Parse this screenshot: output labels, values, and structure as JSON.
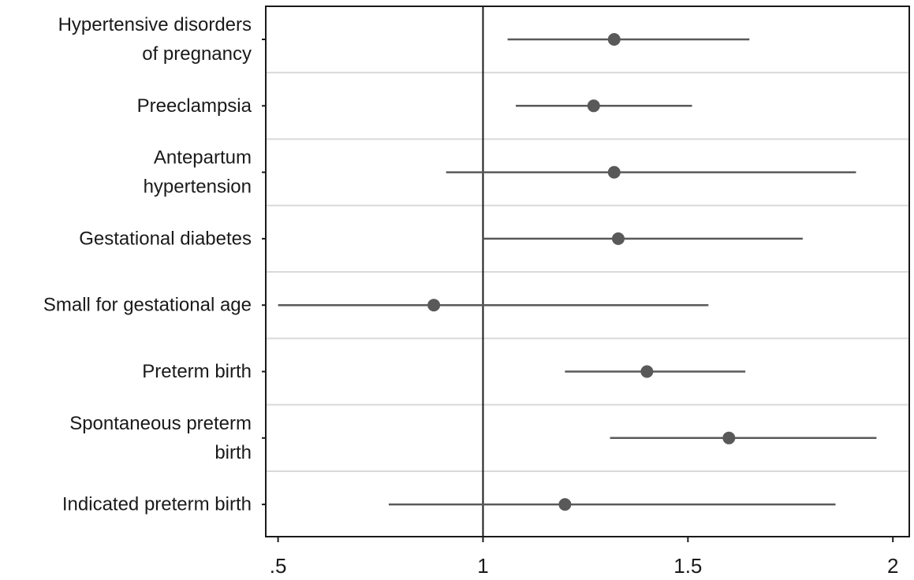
{
  "chart_data": {
    "type": "scatter",
    "title": "",
    "xlabel": "",
    "ylabel": "",
    "xlim": [
      0.47,
      2.04
    ],
    "reference_line": 1,
    "xticks": [
      0.5,
      1,
      1.5,
      2
    ],
    "xtick_labels": [
      ".5",
      "1",
      "1.5",
      "2"
    ],
    "grid": "horizontal separators between rows",
    "colors": {
      "marker": "#595959",
      "ci_line": "#595959",
      "separator": "#d9d9d9",
      "axis": "#1a1a1a"
    },
    "rows": [
      {
        "label_lines": [
          "Hypertensive disorders",
          "of pregnancy"
        ],
        "estimate": 1.32,
        "lower": 1.06,
        "upper": 1.65
      },
      {
        "label_lines": [
          "Preeclampsia"
        ],
        "estimate": 1.27,
        "lower": 1.08,
        "upper": 1.51
      },
      {
        "label_lines": [
          "Antepartum",
          "hypertension"
        ],
        "estimate": 1.32,
        "lower": 0.91,
        "upper": 1.91
      },
      {
        "label_lines": [
          "Gestational diabetes"
        ],
        "estimate": 1.33,
        "lower": 1.0,
        "upper": 1.78
      },
      {
        "label_lines": [
          "Small for gestational age"
        ],
        "estimate": 0.88,
        "lower": 0.5,
        "upper": 1.55
      },
      {
        "label_lines": [
          "Preterm birth"
        ],
        "estimate": 1.4,
        "lower": 1.2,
        "upper": 1.64
      },
      {
        "label_lines": [
          "Spontaneous preterm",
          "birth"
        ],
        "estimate": 1.6,
        "lower": 1.31,
        "upper": 1.96
      },
      {
        "label_lines": [
          "Indicated preterm birth"
        ],
        "estimate": 1.2,
        "lower": 0.77,
        "upper": 1.86
      }
    ]
  }
}
